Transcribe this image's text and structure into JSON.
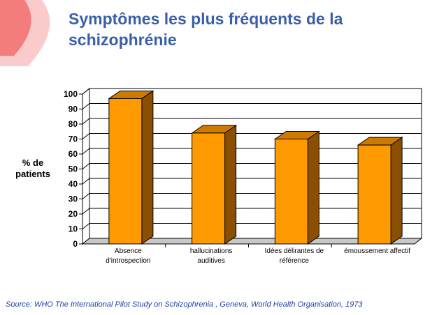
{
  "slide": {
    "title_lines": [
      "Symptômes les plus fréquents de la",
      "schizophrénie"
    ],
    "source": "Source: WHO The International Pilot Study on Schizophrenia , Geneva, World Health Organisation, 1973"
  },
  "chart_data": {
    "type": "bar",
    "title": "",
    "ylabel_lines": [
      "% de",
      "patients"
    ],
    "ylim": [
      0,
      100
    ],
    "yticks": [
      0,
      10,
      20,
      30,
      40,
      50,
      60,
      70,
      80,
      90,
      100
    ],
    "grid": true,
    "style": "3d",
    "categories": [
      [
        "Absence",
        "d'introspection"
      ],
      [
        "hallucinations",
        "auditives"
      ],
      [
        "Idées délirantes de",
        "référence"
      ],
      [
        "émoussement affectif"
      ]
    ],
    "values": [
      97,
      74,
      70,
      66
    ],
    "colors": {
      "bar_front": "#ff9900",
      "bar_top": "#cc7a00",
      "bar_side": "#8a4f00",
      "accent": "#3a5fa8"
    }
  }
}
